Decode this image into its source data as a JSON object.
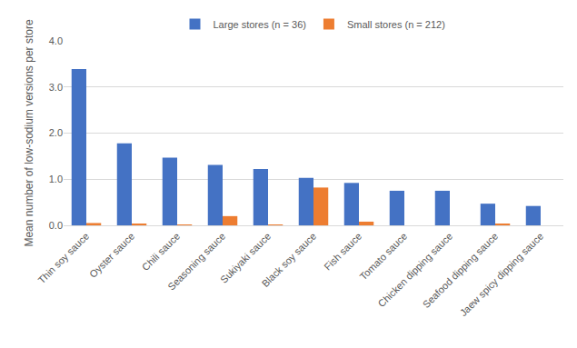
{
  "chart_data": {
    "type": "bar",
    "ylabel": "Mean number of low-sodium versions per store",
    "categories": [
      "Thin soy sauce",
      "Oyster sauce",
      "Chili sauce",
      "Seasoning sauce",
      "Sukiyaki sauce",
      "Black soy sauce",
      "Fish sauce",
      "Tomato sauce",
      "Chicken dipping sauce",
      "Seafood dipping sauce",
      "Jaew spicy dipping sauce"
    ],
    "series": [
      {
        "name": "Large stores (n = 36)",
        "color": "#4472c4",
        "values": [
          3.39,
          1.78,
          1.47,
          1.31,
          1.22,
          1.03,
          0.92,
          0.75,
          0.75,
          0.47,
          0.42
        ]
      },
      {
        "name": "Small stores (n = 212)",
        "color": "#ed7d31",
        "values": [
          0.05,
          0.03,
          0.01,
          0.2,
          0.01,
          0.82,
          0.08,
          0,
          0,
          0.04,
          0
        ]
      }
    ],
    "ylim": [
      0,
      4
    ],
    "yticks": [
      {
        "value": 0,
        "label": "0.0"
      },
      {
        "value": 1,
        "label": "1.0"
      },
      {
        "value": 2,
        "label": "2.0"
      },
      {
        "value": 3,
        "label": "3.0"
      },
      {
        "value": 4,
        "label": "4.0"
      }
    ],
    "grid": true,
    "legend": "top"
  }
}
